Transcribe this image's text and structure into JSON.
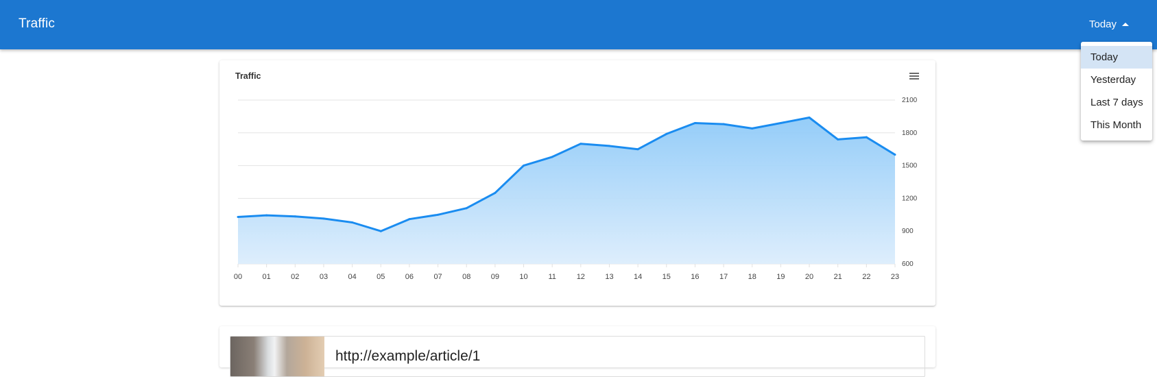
{
  "appbar": {
    "title": "Traffic",
    "range_label": "Today",
    "color": "#1c77d0"
  },
  "range_menu": {
    "items": [
      {
        "label": "Today",
        "selected": true
      },
      {
        "label": "Yesterday",
        "selected": false
      },
      {
        "label": "Last 7 days",
        "selected": false
      },
      {
        "label": "This Month",
        "selected": false
      }
    ]
  },
  "card": {
    "title": "Traffic",
    "menu_icon": "hamburger-menu-icon"
  },
  "chart_data": {
    "type": "area",
    "title": "Traffic",
    "x": [
      "00",
      "01",
      "02",
      "03",
      "04",
      "05",
      "06",
      "07",
      "08",
      "09",
      "10",
      "11",
      "12",
      "13",
      "14",
      "15",
      "16",
      "17",
      "18",
      "19",
      "20",
      "21",
      "22",
      "23"
    ],
    "series": [
      {
        "values": [
          1030,
          1045,
          1035,
          1015,
          980,
          900,
          1010,
          1050,
          1110,
          1250,
          1500,
          1580,
          1700,
          1680,
          1650,
          1790,
          1890,
          1880,
          1840,
          1890,
          1940,
          1740,
          1760,
          1600
        ],
        "color": "#1a8cf0"
      }
    ],
    "y_ticks": [
      "2100",
      "1800",
      "1500",
      "1200",
      "900",
      "600"
    ],
    "ylim": [
      600,
      2100
    ],
    "y_axis_side": "right",
    "grid": true,
    "legend": false
  },
  "article": {
    "url": "http://example/article/1"
  }
}
